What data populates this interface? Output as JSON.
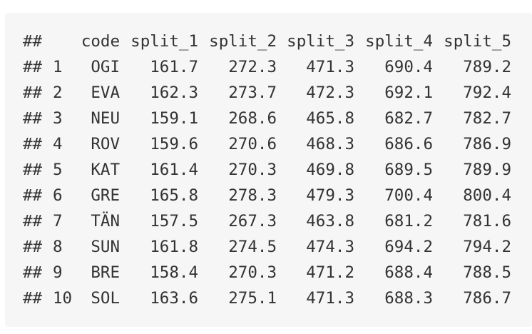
{
  "prompt": "##",
  "columns": [
    "code",
    "split_1",
    "split_2",
    "split_3",
    "split_4",
    "split_5"
  ],
  "rows": [
    {
      "name": "1",
      "code": "OGI",
      "values": [
        "161.7",
        "272.3",
        "471.3",
        "690.4",
        "789.2"
      ]
    },
    {
      "name": "2",
      "code": "EVA",
      "values": [
        "162.3",
        "273.7",
        "472.3",
        "692.1",
        "792.4"
      ]
    },
    {
      "name": "3",
      "code": "NEU",
      "values": [
        "159.1",
        "268.6",
        "465.8",
        "682.7",
        "782.7"
      ]
    },
    {
      "name": "4",
      "code": "ROV",
      "values": [
        "159.6",
        "270.6",
        "468.3",
        "686.6",
        "786.9"
      ]
    },
    {
      "name": "5",
      "code": "KAT",
      "values": [
        "161.4",
        "270.3",
        "469.8",
        "689.5",
        "789.9"
      ]
    },
    {
      "name": "6",
      "code": "GRE",
      "values": [
        "165.8",
        "278.3",
        "479.3",
        "700.4",
        "800.4"
      ]
    },
    {
      "name": "7",
      "code": "TÄN",
      "values": [
        "157.5",
        "267.3",
        "463.8",
        "681.2",
        "781.6"
      ]
    },
    {
      "name": "8",
      "code": "SUN",
      "values": [
        "161.8",
        "274.5",
        "474.3",
        "694.2",
        "794.2"
      ]
    },
    {
      "name": "9",
      "code": "BRE",
      "values": [
        "158.4",
        "270.3",
        "471.2",
        "688.4",
        "788.5"
      ]
    },
    {
      "name": "10",
      "code": "SOL",
      "values": [
        "163.6",
        "275.1",
        "471.3",
        "688.3",
        "786.7"
      ]
    }
  ]
}
